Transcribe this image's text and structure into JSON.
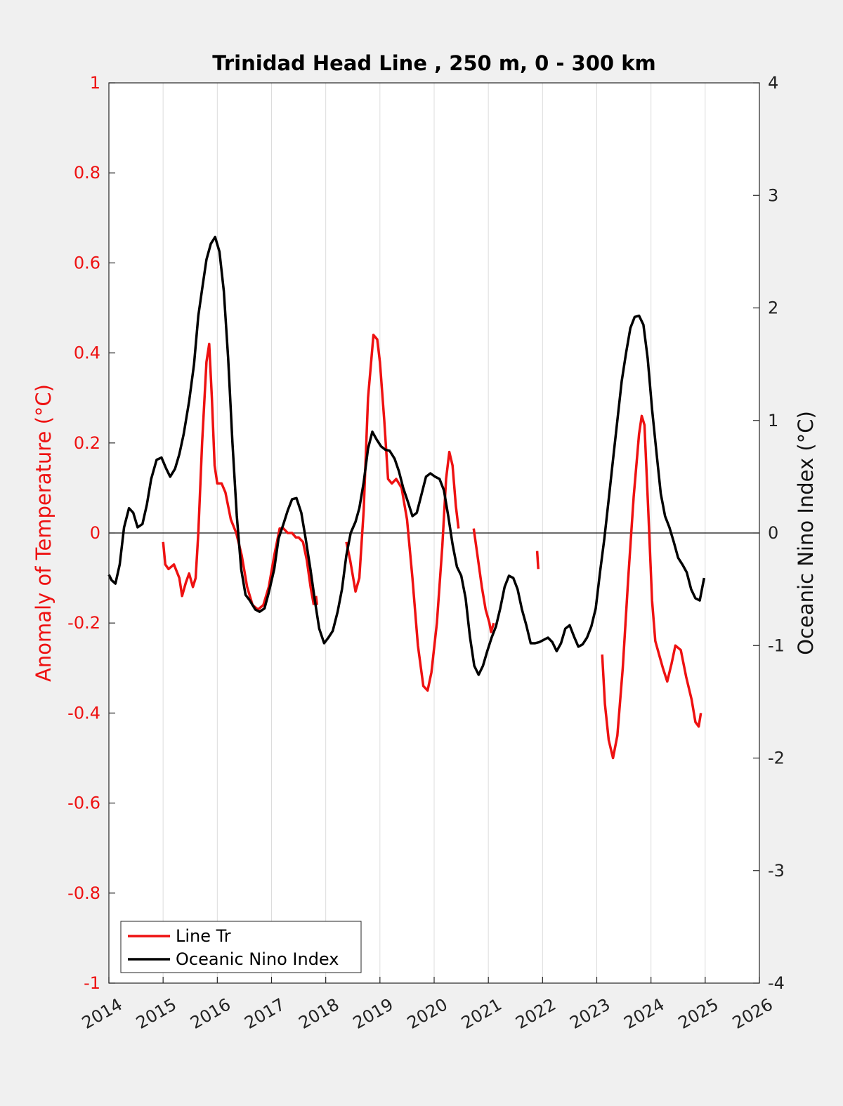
{
  "colors": {
    "left_axis": "#ee1111",
    "right_axis": "#111111",
    "series_line_tr": "#ee1111",
    "series_oni": "#000000",
    "background": "#f0f0f0",
    "plot_background": "#ffffff"
  },
  "chart_data": {
    "type": "line",
    "title": "Trinidad Head Line , 250 m, 0 - 300 km",
    "ylabel_left": "Anomaly of Temperature (°C)",
    "ylabel_right": "Oceanic Nino Index (°C)",
    "xlabel": "",
    "xlim": [
      2014,
      2026
    ],
    "ylim_left": [
      -1,
      1
    ],
    "ylim_right": [
      -4,
      4
    ],
    "x_ticks": [
      "2014",
      "2015",
      "2016",
      "2017",
      "2018",
      "2019",
      "2020",
      "2021",
      "2022",
      "2023",
      "2024",
      "2025",
      "2026"
    ],
    "y_left_ticks": [
      "1",
      "0.8",
      "0.6",
      "0.4",
      "0.2",
      "0",
      "-0.2",
      "-0.4",
      "-0.6",
      "-0.8",
      "-1"
    ],
    "y_right_ticks": [
      "4",
      "3",
      "2",
      "1",
      "0",
      "-1",
      "-2",
      "-3",
      "-4"
    ],
    "grid": "vertical lines at x ticks",
    "legend_position": "bottom-left",
    "series": [
      {
        "name": "Line Tr",
        "axis": "left",
        "segments": [
          [
            [
              2015.0,
              -0.02
            ],
            [
              2015.04,
              -0.07
            ],
            [
              2015.1,
              -0.08
            ],
            [
              2015.2,
              -0.07
            ],
            [
              2015.3,
              -0.1
            ],
            [
              2015.35,
              -0.14
            ],
            [
              2015.42,
              -0.11
            ],
            [
              2015.48,
              -0.09
            ],
            [
              2015.55,
              -0.12
            ],
            [
              2015.6,
              -0.1
            ],
            [
              2015.65,
              0.0
            ],
            [
              2015.72,
              0.2
            ],
            [
              2015.8,
              0.38
            ],
            [
              2015.85,
              0.42
            ],
            [
              2015.9,
              0.3
            ],
            [
              2015.95,
              0.15
            ],
            [
              2016.0,
              0.11
            ],
            [
              2016.08,
              0.11
            ],
            [
              2016.15,
              0.09
            ],
            [
              2016.25,
              0.03
            ],
            [
              2016.35,
              0.0
            ],
            [
              2016.45,
              -0.05
            ],
            [
              2016.55,
              -0.12
            ],
            [
              2016.65,
              -0.16
            ],
            [
              2016.75,
              -0.17
            ],
            [
              2016.85,
              -0.16
            ],
            [
              2016.95,
              -0.12
            ],
            [
              2017.05,
              -0.05
            ],
            [
              2017.15,
              0.01
            ],
            [
              2017.22,
              0.01
            ],
            [
              2017.3,
              0.0
            ],
            [
              2017.38,
              0.0
            ],
            [
              2017.45,
              -0.01
            ],
            [
              2017.5,
              -0.01
            ],
            [
              2017.58,
              -0.02
            ],
            [
              2017.65,
              -0.06
            ],
            [
              2017.72,
              -0.12
            ],
            [
              2017.78,
              -0.16
            ]
          ],
          [
            [
              2017.82,
              -0.14
            ],
            [
              2017.84,
              -0.16
            ]
          ],
          [
            [
              2018.38,
              -0.02
            ],
            [
              2018.45,
              -0.06
            ],
            [
              2018.55,
              -0.13
            ],
            [
              2018.62,
              -0.1
            ],
            [
              2018.7,
              0.05
            ],
            [
              2018.78,
              0.3
            ],
            [
              2018.88,
              0.44
            ],
            [
              2018.95,
              0.43
            ],
            [
              2019.0,
              0.38
            ],
            [
              2019.08,
              0.25
            ],
            [
              2019.15,
              0.12
            ],
            [
              2019.22,
              0.11
            ],
            [
              2019.3,
              0.12
            ],
            [
              2019.4,
              0.1
            ],
            [
              2019.5,
              0.03
            ],
            [
              2019.6,
              -0.1
            ],
            [
              2019.7,
              -0.25
            ],
            [
              2019.8,
              -0.34
            ],
            [
              2019.88,
              -0.35
            ],
            [
              2019.95,
              -0.31
            ],
            [
              2020.05,
              -0.2
            ],
            [
              2020.15,
              -0.03
            ],
            [
              2020.22,
              0.12
            ],
            [
              2020.28,
              0.18
            ],
            [
              2020.34,
              0.15
            ],
            [
              2020.4,
              0.06
            ],
            [
              2020.45,
              0.01
            ]
          ],
          [
            [
              2020.73,
              0.01
            ],
            [
              2020.8,
              -0.05
            ],
            [
              2020.88,
              -0.12
            ],
            [
              2020.95,
              -0.17
            ],
            [
              2021.02,
              -0.2
            ],
            [
              2021.05,
              -0.22
            ],
            [
              2021.1,
              -0.2
            ]
          ],
          [
            [
              2021.9,
              -0.04
            ],
            [
              2021.92,
              -0.08
            ]
          ],
          [
            [
              2023.1,
              -0.27
            ],
            [
              2023.15,
              -0.38
            ],
            [
              2023.22,
              -0.46
            ],
            [
              2023.3,
              -0.5
            ],
            [
              2023.38,
              -0.45
            ],
            [
              2023.48,
              -0.3
            ],
            [
              2023.58,
              -0.1
            ],
            [
              2023.68,
              0.08
            ],
            [
              2023.78,
              0.22
            ],
            [
              2023.83,
              0.26
            ],
            [
              2023.88,
              0.24
            ],
            [
              2023.95,
              0.05
            ],
            [
              2024.02,
              -0.15
            ],
            [
              2024.08,
              -0.24
            ],
            [
              2024.15,
              -0.27
            ],
            [
              2024.22,
              -0.3
            ],
            [
              2024.3,
              -0.33
            ],
            [
              2024.38,
              -0.29
            ],
            [
              2024.45,
              -0.25
            ],
            [
              2024.55,
              -0.26
            ],
            [
              2024.65,
              -0.32
            ],
            [
              2024.75,
              -0.37
            ],
            [
              2024.82,
              -0.42
            ],
            [
              2024.88,
              -0.43
            ],
            [
              2024.92,
              -0.4
            ]
          ]
        ]
      },
      {
        "name": "Oceanic Nino Index",
        "axis": "right",
        "segments": [
          [
            [
              2014.0,
              -0.37
            ],
            [
              2014.05,
              -0.42
            ],
            [
              2014.12,
              -0.45
            ],
            [
              2014.2,
              -0.28
            ],
            [
              2014.28,
              0.05
            ],
            [
              2014.37,
              0.22
            ],
            [
              2014.45,
              0.18
            ],
            [
              2014.53,
              0.05
            ],
            [
              2014.62,
              0.08
            ],
            [
              2014.7,
              0.25
            ],
            [
              2014.78,
              0.48
            ],
            [
              2014.88,
              0.65
            ],
            [
              2014.97,
              0.67
            ],
            [
              2015.05,
              0.58
            ],
            [
              2015.13,
              0.5
            ],
            [
              2015.22,
              0.57
            ],
            [
              2015.3,
              0.7
            ],
            [
              2015.38,
              0.88
            ],
            [
              2015.48,
              1.17
            ],
            [
              2015.57,
              1.5
            ],
            [
              2015.65,
              1.93
            ],
            [
              2015.73,
              2.2
            ],
            [
              2015.8,
              2.43
            ],
            [
              2015.88,
              2.57
            ],
            [
              2015.96,
              2.63
            ],
            [
              2016.04,
              2.5
            ],
            [
              2016.12,
              2.15
            ],
            [
              2016.2,
              1.55
            ],
            [
              2016.28,
              0.8
            ],
            [
              2016.36,
              0.15
            ],
            [
              2016.44,
              -0.32
            ],
            [
              2016.52,
              -0.55
            ],
            [
              2016.6,
              -0.6
            ],
            [
              2016.7,
              -0.68
            ],
            [
              2016.78,
              -0.7
            ],
            [
              2016.87,
              -0.67
            ],
            [
              2016.95,
              -0.53
            ],
            [
              2017.05,
              -0.32
            ],
            [
              2017.13,
              -0.05
            ],
            [
              2017.22,
              0.08
            ],
            [
              2017.3,
              0.2
            ],
            [
              2017.38,
              0.3
            ],
            [
              2017.46,
              0.31
            ],
            [
              2017.55,
              0.18
            ],
            [
              2017.63,
              -0.05
            ],
            [
              2017.72,
              -0.33
            ],
            [
              2017.8,
              -0.6
            ],
            [
              2017.88,
              -0.85
            ],
            [
              2017.97,
              -0.98
            ],
            [
              2018.05,
              -0.93
            ],
            [
              2018.13,
              -0.87
            ],
            [
              2018.22,
              -0.7
            ],
            [
              2018.3,
              -0.5
            ],
            [
              2018.38,
              -0.2
            ],
            [
              2018.46,
              0.0
            ],
            [
              2018.55,
              0.1
            ],
            [
              2018.62,
              0.22
            ],
            [
              2018.7,
              0.45
            ],
            [
              2018.78,
              0.75
            ],
            [
              2018.86,
              0.9
            ],
            [
              2018.94,
              0.83
            ],
            [
              2019.02,
              0.77
            ],
            [
              2019.1,
              0.74
            ],
            [
              2019.18,
              0.73
            ],
            [
              2019.27,
              0.66
            ],
            [
              2019.35,
              0.55
            ],
            [
              2019.43,
              0.4
            ],
            [
              2019.52,
              0.27
            ],
            [
              2019.6,
              0.15
            ],
            [
              2019.68,
              0.18
            ],
            [
              2019.76,
              0.33
            ],
            [
              2019.85,
              0.5
            ],
            [
              2019.93,
              0.53
            ],
            [
              2020.02,
              0.5
            ],
            [
              2020.1,
              0.48
            ],
            [
              2020.18,
              0.38
            ],
            [
              2020.26,
              0.15
            ],
            [
              2020.34,
              -0.1
            ],
            [
              2020.42,
              -0.3
            ],
            [
              2020.5,
              -0.38
            ],
            [
              2020.58,
              -0.58
            ],
            [
              2020.66,
              -0.92
            ],
            [
              2020.74,
              -1.18
            ],
            [
              2020.82,
              -1.26
            ],
            [
              2020.9,
              -1.18
            ],
            [
              2020.98,
              -1.05
            ],
            [
              2021.06,
              -0.93
            ],
            [
              2021.14,
              -0.83
            ],
            [
              2021.22,
              -0.67
            ],
            [
              2021.3,
              -0.48
            ],
            [
              2021.38,
              -0.38
            ],
            [
              2021.46,
              -0.4
            ],
            [
              2021.54,
              -0.5
            ],
            [
              2021.62,
              -0.68
            ],
            [
              2021.7,
              -0.82
            ],
            [
              2021.78,
              -0.98
            ],
            [
              2021.86,
              -0.98
            ],
            [
              2021.94,
              -0.97
            ],
            [
              2022.02,
              -0.95
            ],
            [
              2022.1,
              -0.93
            ],
            [
              2022.18,
              -0.97
            ],
            [
              2022.26,
              -1.05
            ],
            [
              2022.34,
              -0.98
            ],
            [
              2022.42,
              -0.85
            ],
            [
              2022.5,
              -0.82
            ],
            [
              2022.58,
              -0.92
            ],
            [
              2022.66,
              -1.01
            ],
            [
              2022.74,
              -0.99
            ],
            [
              2022.82,
              -0.93
            ],
            [
              2022.9,
              -0.83
            ],
            [
              2022.98,
              -0.67
            ],
            [
              2023.06,
              -0.35
            ],
            [
              2023.14,
              -0.05
            ],
            [
              2023.22,
              0.3
            ],
            [
              2023.3,
              0.65
            ],
            [
              2023.38,
              1.0
            ],
            [
              2023.46,
              1.35
            ],
            [
              2023.54,
              1.6
            ],
            [
              2023.62,
              1.82
            ],
            [
              2023.7,
              1.92
            ],
            [
              2023.78,
              1.93
            ],
            [
              2023.86,
              1.85
            ],
            [
              2023.94,
              1.55
            ],
            [
              2024.02,
              1.1
            ],
            [
              2024.1,
              0.72
            ],
            [
              2024.18,
              0.35
            ],
            [
              2024.26,
              0.15
            ],
            [
              2024.34,
              0.05
            ],
            [
              2024.42,
              -0.08
            ],
            [
              2024.5,
              -0.22
            ],
            [
              2024.58,
              -0.28
            ],
            [
              2024.66,
              -0.35
            ],
            [
              2024.74,
              -0.5
            ],
            [
              2024.82,
              -0.58
            ],
            [
              2024.9,
              -0.6
            ],
            [
              2024.98,
              -0.4
            ]
          ]
        ]
      }
    ]
  },
  "legend": {
    "entries": [
      {
        "label": "Line Tr",
        "color": "#ee1111"
      },
      {
        "label": "Oceanic Nino Index",
        "color": "#000000"
      }
    ]
  }
}
